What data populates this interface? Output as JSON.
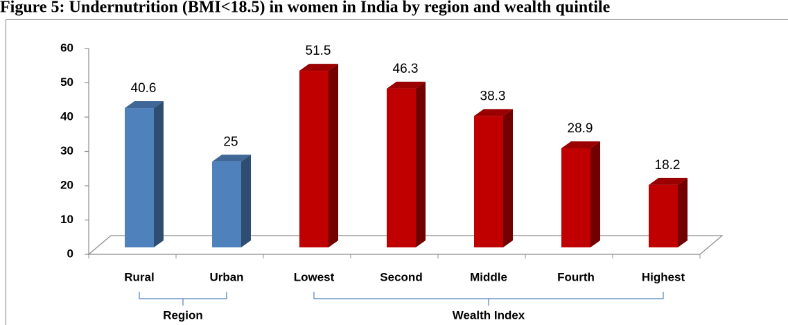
{
  "chart_data": {
    "type": "bar3d",
    "title": "Figure 5: Undernutrition (BMI<18.5) in women in India by region and wealth quintile",
    "categories": [
      "Rural",
      "Urban",
      "Lowest",
      "Second",
      "Middle",
      "Fourth",
      "Highest"
    ],
    "values": [
      40.6,
      25,
      51.5,
      46.3,
      38.3,
      28.9,
      18.2
    ],
    "colors": [
      "#4f81bd",
      "#4f81bd",
      "#c00000",
      "#c00000",
      "#c00000",
      "#c00000",
      "#c00000"
    ],
    "groups": [
      {
        "name": "Region",
        "from": 0,
        "to": 1
      },
      {
        "name": "Wealth Index",
        "from": 2,
        "to": 6
      }
    ],
    "ylim": [
      0,
      60
    ],
    "yticks": [
      0,
      10,
      20,
      30,
      40,
      50,
      60
    ]
  }
}
